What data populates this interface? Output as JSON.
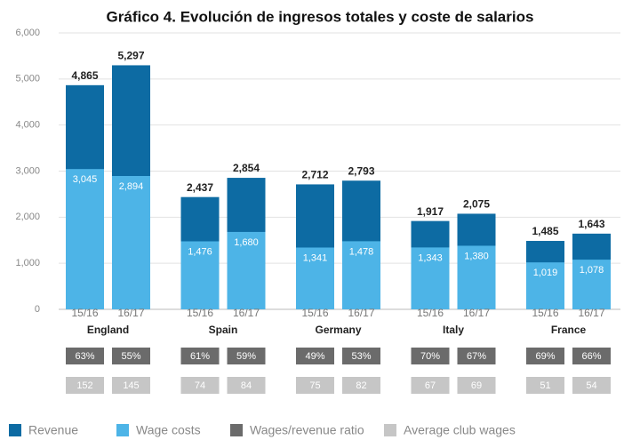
{
  "chart_data": {
    "type": "bar",
    "title": "Gráfico 4. Evolución de ingresos totales y coste de salarios",
    "groups": [
      "England",
      "Spain",
      "Germany",
      "Italy",
      "France"
    ],
    "categories": [
      "15/16",
      "16/17",
      "15/16",
      "16/17",
      "15/16",
      "16/17",
      "15/16",
      "16/17",
      "15/16",
      "16/17"
    ],
    "series": [
      {
        "name": "Revenue",
        "color": "#0d6ba3",
        "values": [
          4865,
          5297,
          2437,
          2854,
          2712,
          2793,
          1917,
          2075,
          1485,
          1643
        ],
        "value_labels": [
          "4,865",
          "5,297",
          "2,437",
          "2,854",
          "2,712",
          "2,793",
          "1,917",
          "2,075",
          "1,485",
          "1,643"
        ]
      },
      {
        "name": "Wage costs",
        "color": "#4db4e7",
        "values": [
          3045,
          2894,
          1476,
          1680,
          1341,
          1478,
          1343,
          1380,
          1019,
          1078
        ],
        "value_labels": [
          "3,045",
          "2,894",
          "1,476",
          "1,680",
          "1,341",
          "1,478",
          "1,343",
          "1,380",
          "1,019",
          "1,078"
        ]
      },
      {
        "name": "Wages/revenue ratio",
        "color": "#6b6b6b",
        "values": [
          63,
          55,
          61,
          59,
          49,
          53,
          70,
          67,
          69,
          66
        ],
        "value_labels": [
          "63%",
          "55%",
          "61%",
          "59%",
          "49%",
          "53%",
          "70%",
          "67%",
          "69%",
          "66%"
        ]
      },
      {
        "name": "Average club wages",
        "color": "#c6c6c6",
        "values": [
          152,
          145,
          74,
          84,
          75,
          82,
          67,
          69,
          51,
          54
        ]
      }
    ],
    "ylim": [
      0,
      6000
    ],
    "yticks": [
      0,
      {
        "value": 1000,
        "label": "1,000"
      },
      {
        "value": 2000,
        "label": "2,000"
      },
      {
        "value": 3000,
        "label": "3,000"
      },
      {
        "value": 4000,
        "label": "4,000"
      },
      {
        "value": 5000,
        "label": "5,000"
      },
      {
        "value": 6000,
        "label": "6,000"
      }
    ],
    "grid": true,
    "legend": "bottom"
  }
}
